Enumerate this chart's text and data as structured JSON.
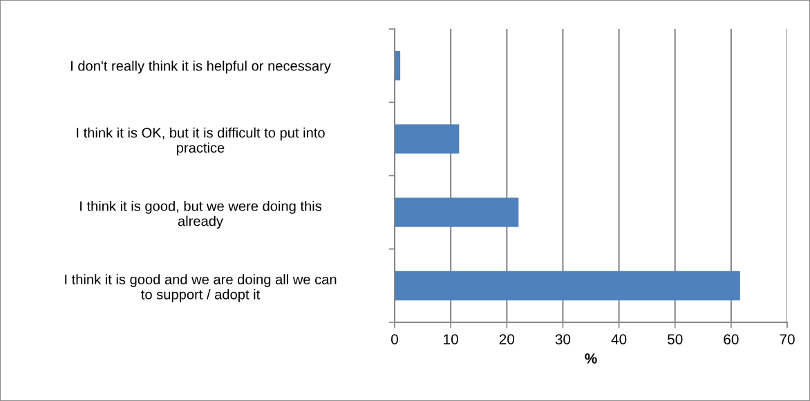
{
  "chart_data": {
    "type": "bar",
    "orientation": "horizontal",
    "xlabel": "%",
    "categories": [
      "I don't really think it is helpful or necessary",
      "I think it is OK, but it is difficult to put into\npractice",
      "I think it is good, but we were doing this\nalready",
      "I think it is good and we are doing all we can\nto support / adopt it"
    ],
    "values": [
      1.0,
      11.5,
      22.1,
      61.6
    ],
    "color": "#4f81bd",
    "xlim": [
      0,
      70
    ],
    "xticks": [
      0,
      10,
      20,
      30,
      40,
      50,
      60,
      70
    ],
    "grid": "x",
    "legend": false
  }
}
